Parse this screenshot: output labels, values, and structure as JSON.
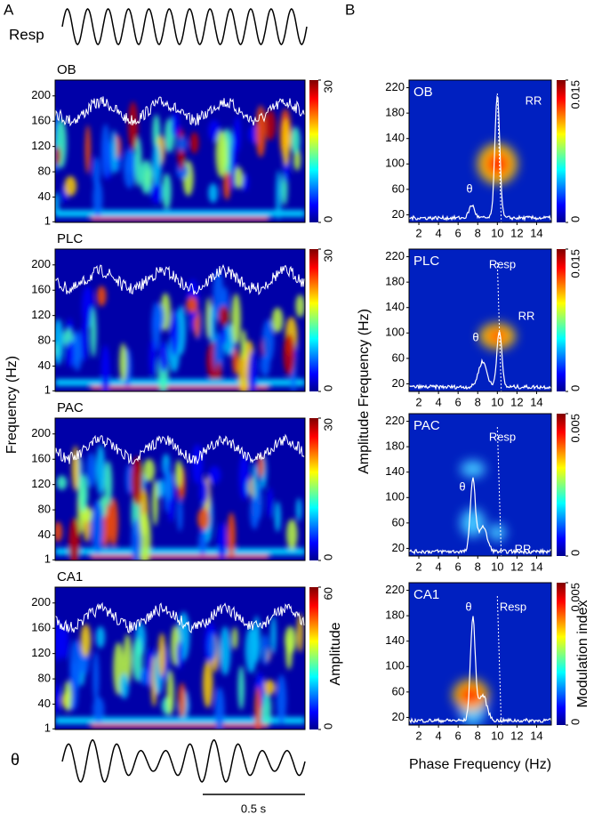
{
  "figure": {
    "panel_labels": [
      "A",
      "B"
    ],
    "panel_a": {
      "resp_label": "Resp",
      "theta_label": "θ",
      "y_label": "Frequency (Hz)",
      "colorbar_label": "Amplitude",
      "scale_bar": "0.5 s",
      "ylim": [
        0,
        225
      ],
      "yticks": [
        1,
        40,
        80,
        120,
        160,
        200
      ],
      "plots": [
        {
          "title": "OB",
          "clim": [
            0,
            30
          ],
          "cticks": [
            0,
            30
          ]
        },
        {
          "title": "PLC",
          "clim": [
            0,
            30
          ],
          "cticks": [
            0,
            30
          ]
        },
        {
          "title": "PAC",
          "clim": [
            0,
            30
          ],
          "cticks": [
            0,
            30
          ]
        },
        {
          "title": "CA1",
          "clim": [
            0,
            60
          ],
          "cticks": [
            0,
            60
          ]
        }
      ]
    },
    "panel_b": {
      "y_label": "Amplitude Frequency (Hz)",
      "x_label": "Phase Frequency (Hz)",
      "colorbar_label": "Modulation index",
      "xlim": [
        1,
        15.5
      ],
      "xticks": [
        2,
        4,
        6,
        8,
        10,
        12,
        14
      ],
      "ylim": [
        8,
        232
      ],
      "yticks": [
        20,
        60,
        100,
        140,
        180,
        220
      ],
      "plots": [
        {
          "title": "OB",
          "clim": [
            0,
            0.015
          ],
          "cticks": [
            0,
            0.015
          ],
          "annotations": [
            "θ",
            "RR"
          ]
        },
        {
          "title": "PLC",
          "clim": [
            0,
            0.015
          ],
          "cticks": [
            0,
            0.015
          ],
          "annotations": [
            "Resp",
            "θ",
            "RR"
          ]
        },
        {
          "title": "PAC",
          "clim": [
            0,
            0.005
          ],
          "cticks": [
            0,
            0.005
          ],
          "annotations": [
            "Resp",
            "θ",
            "RR"
          ]
        },
        {
          "title": "CA1",
          "clim": [
            0,
            0.005
          ],
          "cticks": [
            0,
            0.005
          ],
          "annotations": [
            "θ",
            "Resp"
          ]
        }
      ]
    }
  }
}
